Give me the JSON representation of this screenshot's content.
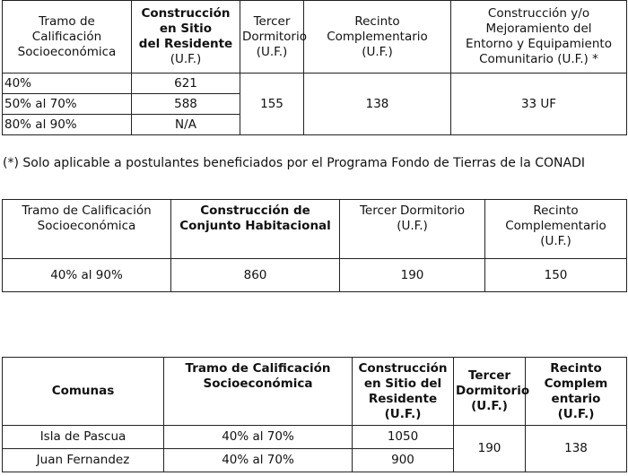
{
  "table1": {
    "headers": [
      "Tramo de\nCalificación\nSocioeconómica",
      "Construcción\nen Sitio\ndel Residente",
      "(U.F.)",
      "Tercer\nDormitorio\n(U.F.)",
      "Recinto\nComplementario\n(U.F.)",
      "Construcción y/o\nMejoramiento del\nEntorno y Equipamiento\nComunitario (U.F.) *"
    ],
    "rows": [
      {
        "tramo": "40%",
        "construccion": "621"
      },
      {
        "tramo": "50% al 70%",
        "construccion": "588"
      },
      {
        "tramo": "80% al 90%",
        "construccion": "N/A"
      }
    ],
    "tercer_dormitorio": "155",
    "recinto": "138",
    "entorno": "33 UF"
  },
  "footnote": "(*) Solo aplicable a postulantes beneficiados por el Programa Fondo de Tierras de la CONADI",
  "table2": {
    "headers": [
      "Tramo de Calificación\nSocioeconómica",
      "Construcción de\nConjunto Habitacional",
      "Tercer Dormitorio\n(U.F.)",
      "Recinto\nComplementario\n(U.F.)"
    ],
    "row": [
      "40% al 90%",
      "860",
      "190",
      "150"
    ]
  },
  "table3": {
    "headers": [
      "Comunas",
      "Tramo de Calificación\nSocioeconómica",
      "Construcción\nen Sitio del\nResidente\n(U.F.)",
      "Tercer\nDormitorio\n(U.F.)",
      "Recinto\nComplem\nentario\n(U.F.)"
    ],
    "rows": [
      {
        "comuna": "Isla de Pascua",
        "tramo": "40% al 70%",
        "construccion": "1050"
      },
      {
        "comuna": "Juan Fernandez",
        "tramo": "40% al 70%",
        "construccion": "900"
      }
    ],
    "tercer_dormitorio": "190",
    "recinto": "138"
  }
}
